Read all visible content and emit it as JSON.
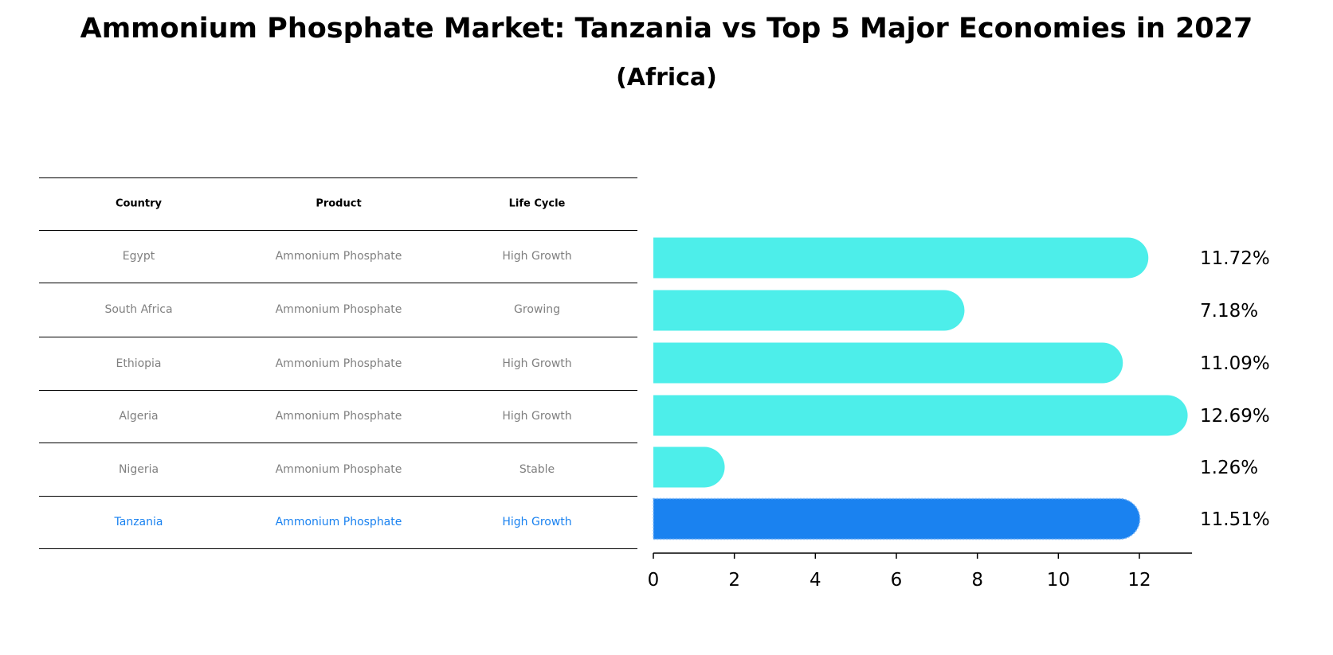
{
  "title": "Ammonium Phosphate Market: Tanzania vs Top 5 Major Economies in 2027",
  "subtitle": "(Africa)",
  "table": {
    "headers": [
      "Country",
      "Product",
      "Life Cycle"
    ],
    "rows": [
      [
        "Egypt",
        "Ammonium Phosphate",
        "High Growth"
      ],
      [
        "South Africa",
        "Ammonium Phosphate",
        "Growing"
      ],
      [
        "Ethiopia",
        "Ammonium Phosphate",
        "High Growth"
      ],
      [
        "Algeria",
        "Ammonium Phosphate",
        "High Growth"
      ],
      [
        "Nigeria",
        "Ammonium Phosphate",
        "Stable"
      ],
      [
        "Tanzania",
        "Ammonium Phosphate",
        "High Growth"
      ]
    ],
    "highlight_row": 5
  },
  "colors": {
    "bar": "#4deeea",
    "highlight": "#1a82f0",
    "table_text": "#808080"
  },
  "chart_data": {
    "type": "bar",
    "orientation": "horizontal",
    "categories": [
      "Egypt",
      "South Africa",
      "Ethiopia",
      "Algeria",
      "Nigeria",
      "Tanzania"
    ],
    "values": [
      11.72,
      7.18,
      11.09,
      12.69,
      1.26,
      11.51
    ],
    "labels": [
      "11.72%",
      "7.18%",
      "11.09%",
      "12.69%",
      "1.26%",
      "11.51%"
    ],
    "xticks": [
      0,
      2,
      4,
      6,
      8,
      10,
      12
    ],
    "xlim": [
      0,
      13.3
    ],
    "grid": false,
    "highlight": "Tanzania"
  }
}
